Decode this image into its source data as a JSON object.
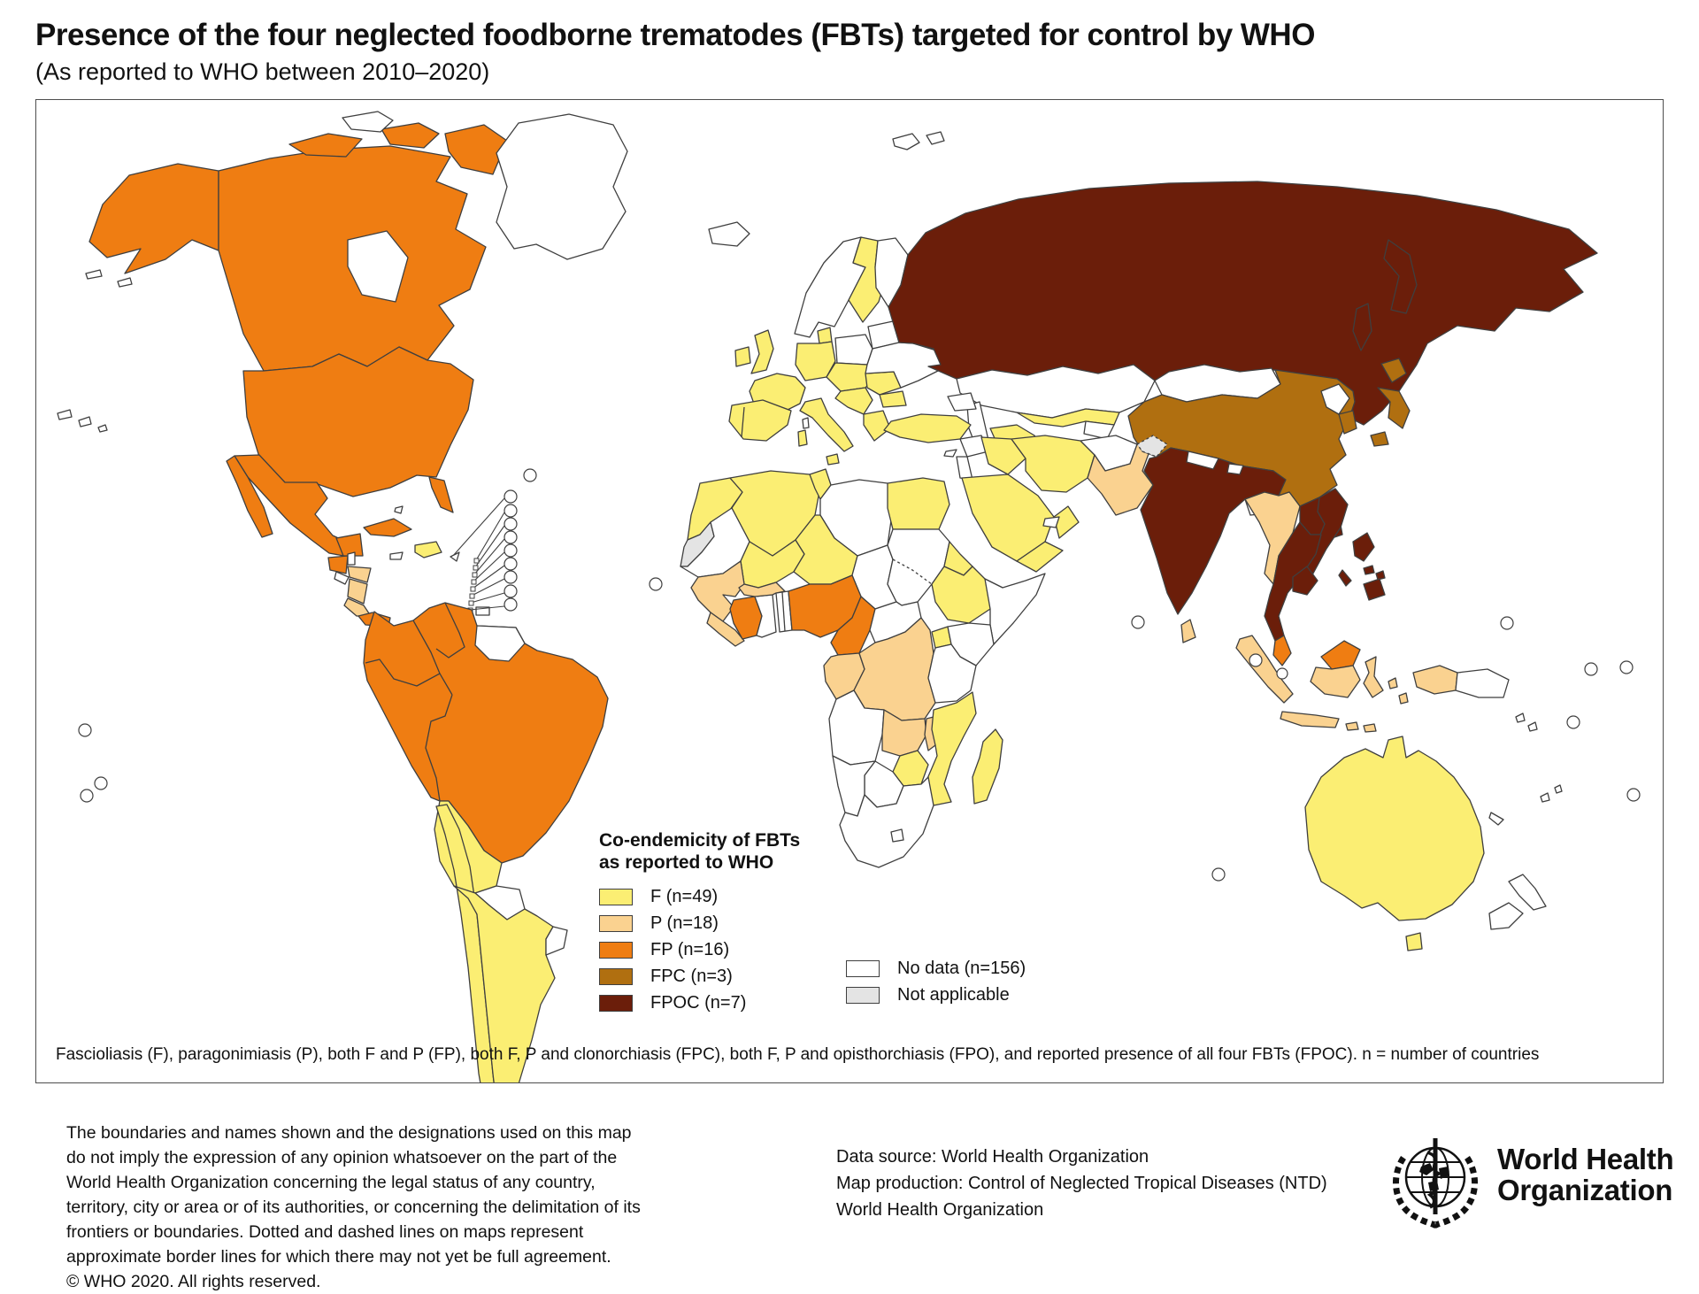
{
  "header": {
    "title": "Presence of the four neglected foodborne trematodes (FBTs) targeted for control by WHO",
    "subtitle": "(As reported to WHO between 2010–2020)"
  },
  "map": {
    "legend": {
      "title_line1": "Co-endemicity of FBTs",
      "title_line2": "as reported to WHO",
      "items": [
        {
          "code": "F",
          "label": "F (n=49)",
          "color": "#FBEE73"
        },
        {
          "code": "P",
          "label": "P (n=18)",
          "color": "#FAD290"
        },
        {
          "code": "FP",
          "label": "FP (n=16)",
          "color": "#EF7D12"
        },
        {
          "code": "FPC",
          "label": "FPC (n=3)",
          "color": "#B06F10"
        },
        {
          "code": "FPOC",
          "label": "FPOC (n=7)",
          "color": "#6B1E0A"
        }
      ],
      "extra_items": [
        {
          "code": "nodata",
          "label": "No data (n=156)",
          "color": "#FFFFFF"
        },
        {
          "code": "na",
          "label": "Not applicable",
          "color": "#E4E4E4"
        }
      ]
    },
    "footnote": "Fascioliasis (F), paragonimiasis (P), both F and P (FP), both F, P and clonorchiasis (FPC), both F, P and opisthorchiasis (FPO), and reported presence of all four FBTs (FPOC). n = number of countries"
  },
  "footer": {
    "disclaimer": "The boundaries and names shown and the designations used on this map do not imply the expression of any opinion whatsoever on the part of the World Health Organization concerning the legal status of any country, territory, city or area or of its authorities, or concerning the delimitation of its frontiers or boundaries. Dotted and dashed lines on maps represent approximate border lines for which there may not yet be full agreement.",
    "copyright": "© WHO 2020. All rights reserved.",
    "data_source_lines": [
      "Data source: World Health Organization",
      "Map production: Control of Neglected Tropical Diseases (NTD)",
      "World Health Organization"
    ],
    "logo_text_line1": "World Health",
    "logo_text_line2": "Organization"
  },
  "colors": {
    "border": "#4d4d4d",
    "country_stroke": "#3f3f3f"
  }
}
